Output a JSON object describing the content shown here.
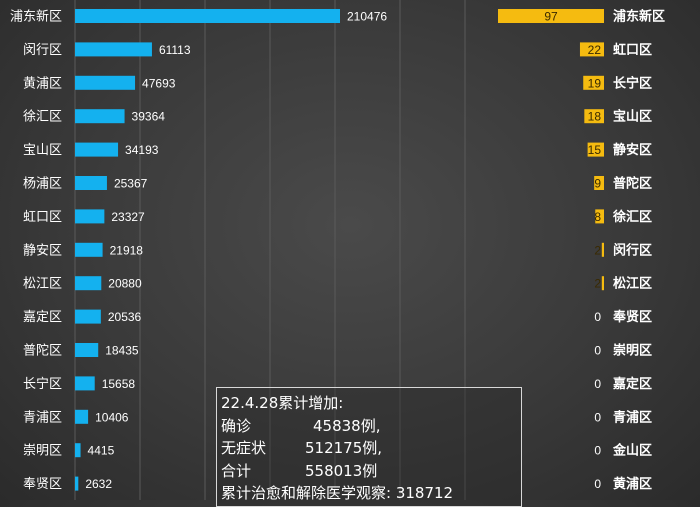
{
  "chart_data": [
    {
      "type": "bar",
      "orientation": "horizontal",
      "categories": [
        "浦东新区",
        "闵行区",
        "黄浦区",
        "徐汇区",
        "宝山区",
        "杨浦区",
        "虹口区",
        "静安区",
        "松江区",
        "嘉定区",
        "普陀区",
        "长宁区",
        "青浦区",
        "崇明区",
        "奉贤区"
      ],
      "values": [
        210476,
        61113,
        47693,
        39364,
        34193,
        25367,
        23327,
        21918,
        20880,
        20536,
        18435,
        15658,
        10406,
        4415,
        2632
      ],
      "xlim": [
        0,
        210476
      ],
      "grid": true,
      "bar_color": "#14b1ef"
    },
    {
      "type": "bar",
      "orientation": "horizontal",
      "direction": "right-to-left",
      "categories": [
        "浦东新区",
        "虹口区",
        "长宁区",
        "宝山区",
        "静安区",
        "普陀区",
        "徐汇区",
        "闵行区",
        "松江区",
        "奉贤区",
        "崇明区",
        "嘉定区",
        "青浦区",
        "金山区",
        "黄浦区"
      ],
      "values": [
        97,
        22,
        19,
        18,
        15,
        9,
        8,
        2,
        2,
        0,
        0,
        0,
        0,
        0,
        0
      ],
      "value_labels": [
        "97",
        "22",
        "19",
        "18",
        "15",
        "9",
        "8",
        "2",
        "2",
        "0",
        "0",
        "0",
        "0",
        "0",
        "0"
      ],
      "xlim": [
        0,
        97
      ],
      "bar_color": "#f5bb10"
    }
  ],
  "summary": {
    "title": "22.4.28累计增加:",
    "confirmed_label": "确诊",
    "confirmed_value": "45838例,",
    "asymptomatic_label": "无症状",
    "asymptomatic_value": "512175例,",
    "total_label": "合计",
    "total_value": "558013例",
    "recovered": "累计治愈和解除医学观察: 318712"
  }
}
